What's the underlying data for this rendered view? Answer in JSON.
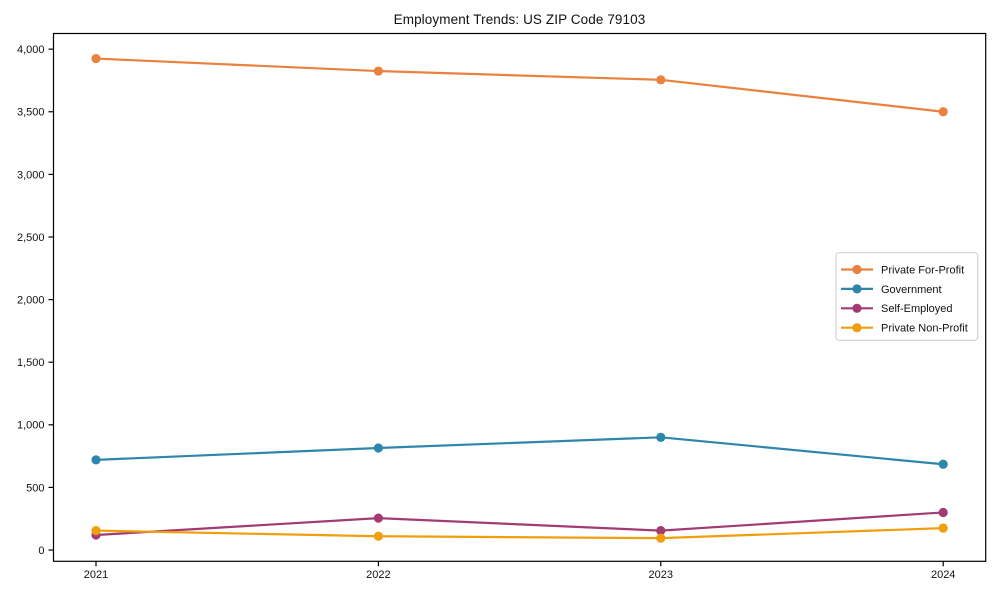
{
  "title": "Employment Trends: US ZIP Code 79103",
  "chart_data": {
    "type": "line",
    "title": "Employment Trends: US ZIP Code 79103",
    "categories": [
      "2021",
      "2022",
      "2023",
      "2024"
    ],
    "series": [
      {
        "name": "Private For-Profit",
        "color": "#E8823E",
        "values": [
          3925,
          3825,
          3755,
          3500
        ]
      },
      {
        "name": "Government",
        "color": "#2E86AB",
        "values": [
          720,
          815,
          900,
          685
        ]
      },
      {
        "name": "Self-Employed",
        "color": "#A23B72",
        "values": [
          120,
          255,
          155,
          300
        ]
      },
      {
        "name": "Private Non-Profit",
        "color": "#F09E0E",
        "values": [
          155,
          110,
          95,
          175
        ]
      }
    ],
    "xlabel": "",
    "ylabel": "",
    "ylim": [
      -90,
      4125
    ],
    "yticks": [
      0,
      500,
      1000,
      1500,
      2000,
      2500,
      3000,
      3500,
      4000
    ],
    "ytick_format": "comma",
    "grid": false,
    "legend_position": "center-right",
    "legend_border_color": "#cccccc",
    "axis_color": "#000000",
    "background_color": "#ffffff"
  }
}
